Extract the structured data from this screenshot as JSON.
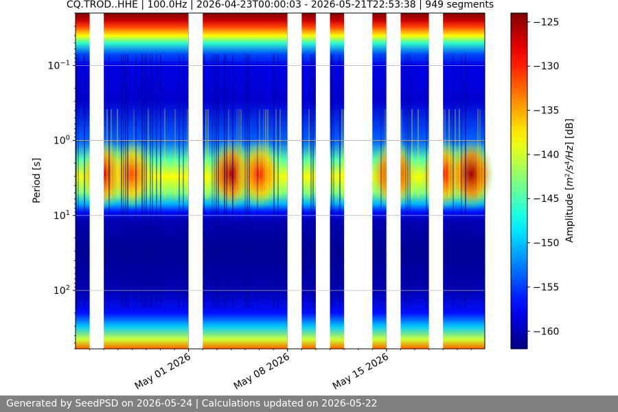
{
  "chart_data": {
    "type": "heatmap",
    "title": "CQ.TROD..HHE | 100.0Hz | 2026-04-23T00:00:03 - 2026-05-21T22:53:38 | 949 segments",
    "xlabel": "",
    "ylabel": "Period [s]",
    "x_range": [
      "2026-04-23T00:00:03",
      "2026-05-21T22:53:38"
    ],
    "x_ticks": [
      {
        "date": "2026-05-01",
        "label": "May 01 2026"
      },
      {
        "date": "2026-05-08",
        "label": "May 08 2026"
      },
      {
        "date": "2026-05-15",
        "label": "May 15 2026"
      }
    ],
    "y_scale": "log",
    "y_inverted": true,
    "y_range": [
      0.02,
      600
    ],
    "y_ticks": [
      {
        "value": 0.1,
        "base": "10",
        "exp": "−1"
      },
      {
        "value": 1,
        "base": "10",
        "exp": "0"
      },
      {
        "value": 10,
        "base": "10",
        "exp": "1"
      },
      {
        "value": 100,
        "base": "10",
        "exp": "2"
      }
    ],
    "grid": true,
    "colormap": "jet",
    "colorbar": {
      "label_prefix": "Amplitude [",
      "label_unit_html": "m²/s⁴/Hz",
      "label_suffix": "] [dB]",
      "range": [
        -162,
        -124
      ],
      "ticks": [
        "-125",
        "-130",
        "-135",
        "-140",
        "-145",
        "-150",
        "-155",
        "-160"
      ]
    },
    "gaps": [
      [
        "2026-04-24T00:00:00",
        "2026-04-25T00:00:00"
      ],
      [
        "2026-05-01T00:00:00",
        "2026-05-02T00:00:00"
      ],
      [
        "2026-05-08T00:00:00",
        "2026-05-09T00:00:00"
      ],
      [
        "2026-05-10T00:00:00",
        "2026-05-11T00:00:00"
      ],
      [
        "2026-05-12T00:00:00",
        "2026-05-14T00:00:00"
      ],
      [
        "2026-05-15T00:00:00",
        "2026-05-16T00:00:00"
      ],
      [
        "2026-05-18T00:00:00",
        "2026-05-19T00:00:00"
      ]
    ],
    "high_days": [
      {
        "date": "2026-04-25T00:00:00",
        "level": 0.85
      },
      {
        "date": "2026-04-27T00:00:00",
        "level": 0.6
      },
      {
        "date": "2026-05-04T00:00:00",
        "level": 0.95
      },
      {
        "date": "2026-05-06T00:00:00",
        "level": 0.7
      },
      {
        "date": "2026-05-15T12:00:00",
        "level": 0.95
      },
      {
        "date": "2026-05-19T00:00:00",
        "level": 0.8
      },
      {
        "date": "2026-05-21T00:00:00",
        "level": 1.0
      }
    ]
  },
  "footer": {
    "text": "Generated by SeedPSD on 2026-05-24 | Calculations updated on 2026-05-22"
  }
}
